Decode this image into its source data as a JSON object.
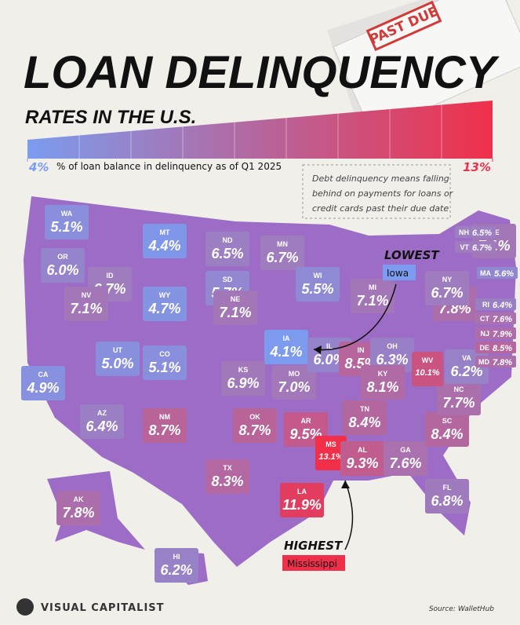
{
  "chart_data": {
    "type": "map",
    "title": "LOAN DELINQUENCY",
    "subtitle": "RATES IN THE U.S.",
    "stamp": "PAST DUE",
    "legend_caption": "% of loan balance in delinquency as of Q1 2025",
    "colorbar": {
      "ticks": [
        {
          "value": 4,
          "label": "4%"
        },
        {
          "value": 13,
          "label": "13%"
        }
      ],
      "colors": [
        "#7b9cf0",
        "#f0304a"
      ]
    },
    "note": [
      "Debt delinquency means falling",
      "behind on payments for loans or",
      "credit cards past their due date"
    ],
    "categories": [
      "WA",
      "OR",
      "CA",
      "ID",
      "NV",
      "MT",
      "WY",
      "UT",
      "CO",
      "AZ",
      "NM",
      "ND",
      "SD",
      "NE",
      "KS",
      "OK",
      "TX",
      "MN",
      "IA",
      "MO",
      "AR",
      "LA",
      "WI",
      "IL",
      "MS",
      "MI",
      "IN",
      "OH",
      "KY",
      "TN",
      "AL",
      "GA",
      "FL",
      "SC",
      "NC",
      "VA",
      "WV",
      "PA",
      "NY",
      "ME",
      "NH",
      "VT",
      "MA",
      "RI",
      "CT",
      "NJ",
      "DE",
      "MD",
      "AK",
      "HI"
    ],
    "values": [
      5.1,
      6.0,
      4.9,
      6.7,
      7.1,
      4.4,
      4.7,
      5.0,
      5.1,
      6.4,
      8.7,
      6.5,
      5.7,
      7.1,
      6.9,
      8.7,
      8.3,
      6.7,
      4.1,
      7.0,
      9.5,
      11.9,
      5.5,
      6.0,
      13.1,
      7.1,
      8.5,
      6.3,
      8.1,
      8.4,
      9.3,
      7.6,
      6.8,
      8.4,
      7.7,
      6.2,
      10.1,
      7.8,
      6.7,
      7.1,
      6.5,
      6.7,
      5.6,
      6.4,
      7.6,
      7.9,
      8.5,
      7.8,
      7.8,
      6.2
    ],
    "value_labels": [
      "5.1%",
      "6.0%",
      "4.9%",
      "6.7%",
      "7.1%",
      "4.4%",
      "4.7%",
      "5.0%",
      "5.1%",
      "6.4%",
      "8.7%",
      "6.5%",
      "5.7%",
      "7.1%",
      "6.9%",
      "8.7%",
      "8.3%",
      "6.7%",
      "4.1%",
      "7.0%",
      "9.5%",
      "11.9%",
      "5.5%",
      "6.0%",
      "13.1%",
      "7.1%",
      "8.5%",
      "6.3%",
      "8.1%",
      "8.4%",
      "9.3%",
      "7.6%",
      "6.8%",
      "8.4%",
      "7.7%",
      "6.2%",
      "10.1%",
      "7.8%",
      "6.7%",
      "7.1%",
      "6.5%",
      "6.7%",
      "5.6%",
      "6.4%",
      "7.6%",
      "7.9%",
      "8.5%",
      "7.8%",
      "7.8%",
      "6.2%"
    ],
    "lowest": {
      "heading": "LOWEST",
      "state": "Iowa"
    },
    "highest": {
      "heading": "HIGHEST",
      "state": "Mississippi"
    },
    "brand": "VISUAL CAPITALIST",
    "source": "Source: WalletHub"
  }
}
